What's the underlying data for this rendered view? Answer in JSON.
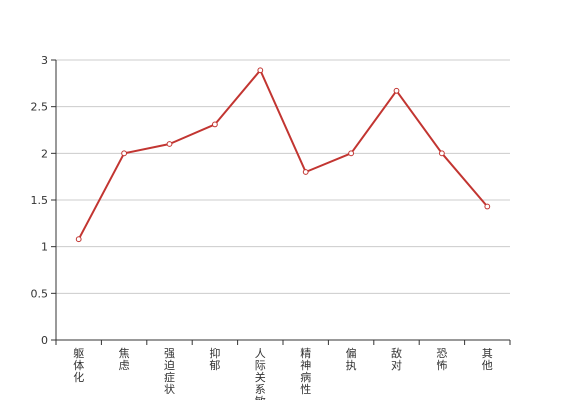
{
  "chart_data": {
    "type": "line",
    "categories": [
      "躯体化",
      "焦虑",
      "强迫症状",
      "抑郁",
      "人际关系敏感",
      "精神病性",
      "偏执",
      "敌对",
      "恐怖",
      "其他"
    ],
    "series": [
      {
        "values": [
          1.08,
          2.0,
          2.1,
          2.31,
          2.89,
          1.8,
          2.0,
          2.67,
          2.0,
          1.43
        ]
      }
    ],
    "ylim": [
      0,
      3
    ],
    "yticks": [
      0,
      0.5,
      1,
      1.5,
      2,
      2.5,
      3
    ],
    "ytick_labels": [
      "0",
      "0.5",
      "1",
      "1.5",
      "2",
      "2.5",
      "3"
    ],
    "grid": true,
    "line_color": "#c23531",
    "grid_color": "#cccccc",
    "axis_color": "#333333"
  }
}
